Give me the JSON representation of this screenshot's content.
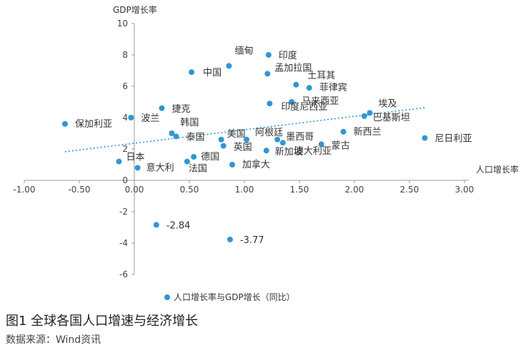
{
  "chart_data": {
    "type": "scatter",
    "xlabel": "人口增长率",
    "ylabel": "GDP增长率",
    "xlim": [
      -1.0,
      3.0
    ],
    "ylim": [
      -6,
      10
    ],
    "x_ticks": [
      "-1.00",
      "-0.50",
      "0.00",
      "0.50",
      "1.00",
      "1.50",
      "2.00",
      "2.50",
      "3.00"
    ],
    "y_ticks": [
      "-6",
      "-4",
      "-2",
      "0",
      "2",
      "4",
      "6",
      "8",
      "10"
    ],
    "legend": "人口增长率与GDP增长（同比）",
    "trendline": true,
    "colors": {
      "point": "#2e97d4",
      "trend": "#2e97d4",
      "axis": "#999999"
    },
    "points": [
      {
        "label": "保加利亚",
        "x": -0.63,
        "y": 3.6
      },
      {
        "label": "波兰",
        "x": -0.03,
        "y": 4.0
      },
      {
        "label": "捷克",
        "x": 0.25,
        "y": 4.6
      },
      {
        "label": "中国",
        "x": 0.52,
        "y": 6.9
      },
      {
        "label": "缅甸",
        "x": 0.86,
        "y": 7.3
      },
      {
        "label": "印度",
        "x": 1.22,
        "y": 8.0
      },
      {
        "label": "孟加拉国",
        "x": 1.21,
        "y": 6.8
      },
      {
        "label": "土耳其",
        "x": 1.47,
        "y": 6.1
      },
      {
        "label": "菲律宾",
        "x": 1.59,
        "y": 5.9
      },
      {
        "label": "马来西亚",
        "x": 1.43,
        "y": 5.0
      },
      {
        "label": "印度尼西亚",
        "x": 1.23,
        "y": 4.9
      },
      {
        "label": "埃及",
        "x": 2.14,
        "y": 4.3
      },
      {
        "label": "巴基斯坦",
        "x": 2.09,
        "y": 4.1
      },
      {
        "label": "韩国",
        "x": 0.34,
        "y": 3.0
      },
      {
        "label": "泰国",
        "x": 0.38,
        "y": 2.8
      },
      {
        "label": "美国",
        "x": 0.79,
        "y": 2.6
      },
      {
        "label": "阿根廷",
        "x": 1.02,
        "y": 2.6
      },
      {
        "label": "墨西哥",
        "x": 1.3,
        "y": 2.6
      },
      {
        "label": "新西兰",
        "x": 1.9,
        "y": 3.1
      },
      {
        "label": "尼日利亚",
        "x": 2.64,
        "y": 2.7
      },
      {
        "label": "英国",
        "x": 0.81,
        "y": 2.2
      },
      {
        "label": "新加坡",
        "x": 1.2,
        "y": 1.9
      },
      {
        "label": "蒙古",
        "x": 1.7,
        "y": 2.3
      },
      {
        "label": "澳大利亚",
        "x": 1.35,
        "y": 2.4
      },
      {
        "label": "德国",
        "x": 0.54,
        "y": 1.5
      },
      {
        "label": "日本",
        "x": -0.14,
        "y": 1.2
      },
      {
        "label": "意大利",
        "x": 0.03,
        "y": 0.8
      },
      {
        "label": "法国",
        "x": 0.48,
        "y": 1.2
      },
      {
        "label": "加拿大",
        "x": 0.89,
        "y": 1.0
      },
      {
        "label": "-2.84",
        "x": 0.2,
        "y": -2.84
      },
      {
        "label": "-3.77",
        "x": 0.87,
        "y": -3.77
      }
    ]
  },
  "caption": "图1 全球各国人口增速与经济增长",
  "source": "数据来源：Wind资讯"
}
